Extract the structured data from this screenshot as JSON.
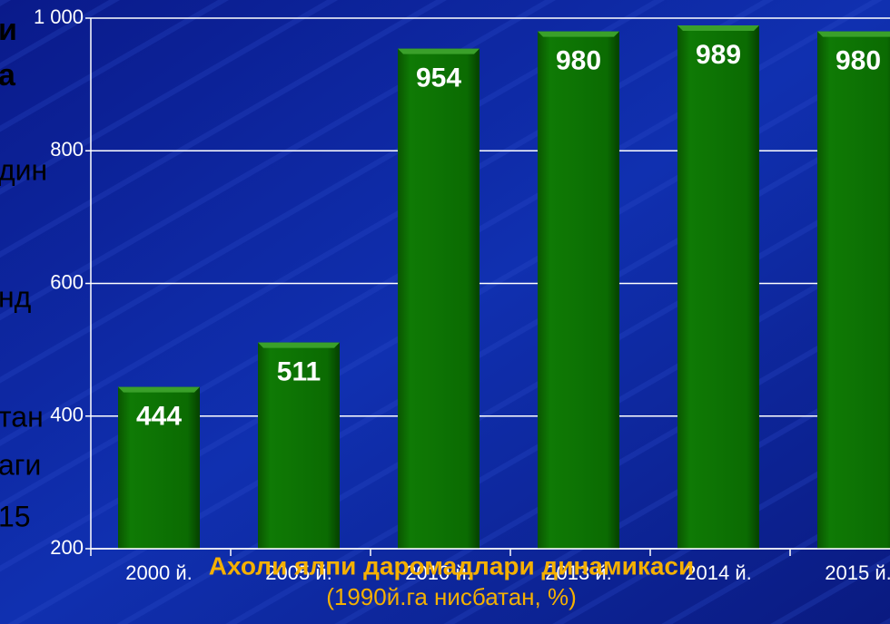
{
  "slide_text": [
    "и",
    "а",
    "дин",
    "нд",
    "тан",
    "аги",
    "15"
  ],
  "chart_data": {
    "type": "bar",
    "title": "Ахоли ялпи даромадлари динамикаси",
    "subtitle": "(1990й.га нисбатан, %)",
    "categories": [
      "2000 й.",
      "2005 й.",
      "2010 й.",
      "2013 й.",
      "2014 й.",
      "2015 й."
    ],
    "values": [
      444,
      511,
      954,
      980,
      989,
      980
    ],
    "color": "#0b6b02",
    "ylim": [
      200,
      1000
    ],
    "yticks": [
      200,
      400,
      600,
      800,
      {
        "value": 1000,
        "label": "1 000"
      }
    ],
    "grid": true
  }
}
